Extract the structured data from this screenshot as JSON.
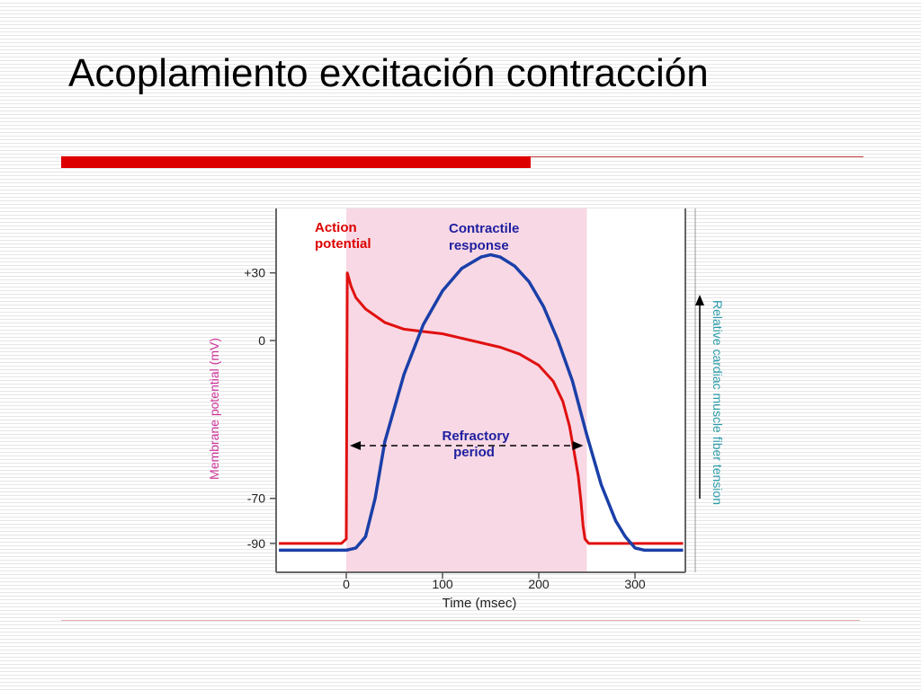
{
  "slide": {
    "title": "Acoplamiento excitación contracción"
  },
  "colors": {
    "title_bar": "#dd0000",
    "background_stripe": "#e6e6e6",
    "refractory_region": "#f8d8e4",
    "action_potential": "#e01010",
    "contractile_response": "#1a3fa8",
    "annotation_text": "#2020a0",
    "ap_label": "#dd0000",
    "left_axis_label": "#cc3399",
    "right_axis_label": "#2a9aa8"
  },
  "chart_data": {
    "type": "line",
    "x": {
      "label": "Time (msec)",
      "ticks": [
        0,
        100,
        200,
        300
      ],
      "range": [
        -70,
        350
      ]
    },
    "y": {
      "label": "Membrane potential (mV)",
      "ticks": [
        "+30",
        "0",
        "-70",
        "-90"
      ],
      "range": [
        -98,
        52
      ]
    },
    "y_right": {
      "label": "Relative cardiac muscle fiber tension",
      "arrow": "up"
    },
    "shaded_region": {
      "x_start": 0,
      "x_end": 250
    },
    "series": [
      {
        "name": "Action potential",
        "color": "#e01010",
        "points": [
          [
            -70,
            -90
          ],
          [
            -5,
            -90
          ],
          [
            0,
            -88
          ],
          [
            1,
            30
          ],
          [
            5,
            24
          ],
          [
            10,
            19
          ],
          [
            20,
            14
          ],
          [
            30,
            11
          ],
          [
            40,
            8
          ],
          [
            60,
            5
          ],
          [
            80,
            4
          ],
          [
            100,
            3
          ],
          [
            120,
            1
          ],
          [
            140,
            -1
          ],
          [
            160,
            -3
          ],
          [
            180,
            -6
          ],
          [
            200,
            -11
          ],
          [
            215,
            -18
          ],
          [
            225,
            -27
          ],
          [
            232,
            -38
          ],
          [
            237,
            -50
          ],
          [
            241,
            -60
          ],
          [
            244,
            -72
          ],
          [
            246,
            -82
          ],
          [
            248,
            -88
          ],
          [
            252,
            -90
          ],
          [
            350,
            -90
          ]
        ]
      },
      {
        "name": "Contractile response",
        "color": "#1a3fa8",
        "points": [
          [
            -70,
            -93
          ],
          [
            0,
            -93
          ],
          [
            10,
            -92
          ],
          [
            20,
            -87
          ],
          [
            30,
            -70
          ],
          [
            40,
            -45
          ],
          [
            60,
            -15
          ],
          [
            80,
            7
          ],
          [
            100,
            22
          ],
          [
            120,
            32
          ],
          [
            140,
            37
          ],
          [
            150,
            38
          ],
          [
            160,
            37
          ],
          [
            175,
            33
          ],
          [
            190,
            26
          ],
          [
            205,
            15
          ],
          [
            220,
            0
          ],
          [
            235,
            -18
          ],
          [
            250,
            -42
          ],
          [
            265,
            -64
          ],
          [
            280,
            -80
          ],
          [
            290,
            -87
          ],
          [
            300,
            -92
          ],
          [
            310,
            -93
          ],
          [
            350,
            -93
          ]
        ]
      }
    ],
    "annotations": [
      {
        "text_line1": "Action",
        "text_line2": "potential",
        "color": "#dd0000"
      },
      {
        "text_line1": "Contractile",
        "text_line2": "response",
        "color": "#2020a0"
      },
      {
        "text_line1": "Refractory",
        "text_line2": "period",
        "color": "#2020a0",
        "spans_x": [
          0,
          250
        ]
      }
    ],
    "grid": false
  }
}
